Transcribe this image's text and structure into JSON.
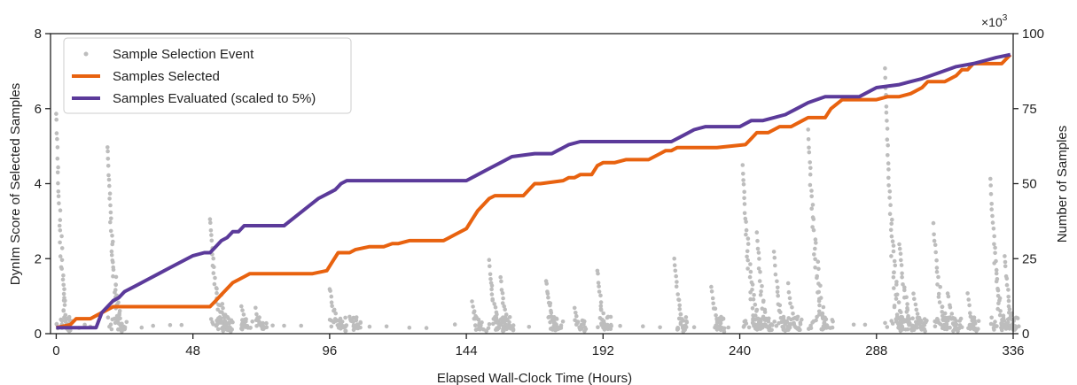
{
  "chart_data": {
    "type": "line",
    "xlabel": "Elapsed Wall-Clock Time (Hours)",
    "ylabel_left": "DynIm Score of Selected Samples",
    "ylabel_right": "Number of Samples",
    "right_multiplier_base": "×10",
    "right_multiplier_exp": "3",
    "xlim": [
      -2,
      336
    ],
    "ylim_left": [
      0,
      8
    ],
    "ylim_right": [
      0,
      100
    ],
    "x_ticks": [
      0,
      48,
      96,
      144,
      192,
      240,
      288,
      336
    ],
    "y_left_ticks": [
      0,
      2,
      4,
      6,
      8
    ],
    "y_right_ticks": [
      0,
      25,
      50,
      75,
      100
    ],
    "legend_position": "top-left",
    "colors": {
      "events": "#bdbdbd",
      "selected": "#e8620f",
      "evaluated": "#5b3a9a"
    },
    "legend": [
      {
        "label": "Sample Selection Event",
        "kind": "marker"
      },
      {
        "label": "Samples Selected",
        "kind": "line"
      },
      {
        "label": "Samples Evaluated (scaled to 5%)",
        "kind": "line"
      }
    ],
    "series": [
      {
        "name": "Samples Selected",
        "axis": "right",
        "x": [
          0,
          5,
          7,
          10,
          12,
          14,
          16,
          18,
          20,
          22,
          26,
          40,
          54,
          56,
          58,
          60,
          62,
          64,
          66,
          68,
          70,
          80,
          90,
          95,
          97,
          99,
          101,
          103,
          105,
          110,
          115,
          118,
          120,
          124,
          126,
          136,
          140,
          144,
          146,
          148,
          150,
          152,
          154,
          156,
          158,
          164,
          166,
          168,
          170,
          178,
          180,
          182,
          184,
          188,
          190,
          192,
          196,
          200,
          208,
          212,
          214,
          216,
          218,
          220,
          224,
          228,
          232,
          242,
          244,
          246,
          250,
          252,
          254,
          258,
          262,
          264,
          266,
          270,
          272,
          276,
          278,
          280,
          286,
          288,
          292,
          296,
          300,
          304,
          306,
          312,
          316,
          318,
          320,
          322,
          326,
          332,
          335
        ],
        "values": [
          2,
          3,
          5,
          5,
          5,
          6,
          7,
          8,
          9,
          9,
          9,
          9,
          9,
          11,
          13,
          15,
          17,
          18,
          19,
          20,
          20,
          20,
          20,
          21,
          24,
          27,
          27,
          27,
          28,
          29,
          29,
          30,
          30,
          31,
          31,
          31,
          33,
          35,
          38,
          41,
          43,
          45,
          46,
          46,
          46,
          46,
          48,
          50,
          50,
          51,
          52,
          52,
          53,
          53,
          56,
          57,
          57,
          58,
          58,
          60,
          61,
          61,
          62,
          62,
          62,
          62,
          62,
          63,
          65,
          67,
          67,
          68,
          69,
          69,
          71,
          72,
          72,
          72,
          75,
          78,
          78,
          78,
          78,
          78,
          79,
          79,
          80,
          82,
          84,
          84,
          86,
          88,
          88,
          90,
          90,
          90,
          93
        ]
      },
      {
        "name": "Samples Evaluated (scaled to 5%)",
        "axis": "right",
        "x": [
          0,
          2,
          14,
          16,
          18,
          20,
          22,
          24,
          28,
          32,
          36,
          40,
          44,
          48,
          52,
          54,
          56,
          58,
          60,
          62,
          64,
          66,
          70,
          80,
          84,
          88,
          92,
          96,
          98,
          100,
          102,
          110,
          124,
          140,
          144,
          148,
          152,
          156,
          160,
          168,
          170,
          174,
          176,
          180,
          184,
          188,
          210,
          216,
          220,
          224,
          228,
          234,
          240,
          242,
          244,
          248,
          252,
          256,
          260,
          264,
          270,
          274,
          278,
          282,
          288,
          296,
          300,
          304,
          310,
          316,
          322,
          326,
          330,
          335
        ],
        "values": [
          2,
          2,
          2,
          7,
          9,
          11,
          12,
          14,
          16,
          18,
          20,
          22,
          24,
          26,
          27,
          27,
          29,
          31,
          32,
          34,
          34,
          36,
          36,
          36,
          39,
          42,
          45,
          47,
          48,
          50,
          51,
          51,
          51,
          51,
          51,
          53,
          55,
          57,
          59,
          60,
          60,
          60,
          61,
          63,
          64,
          64,
          64,
          64,
          66,
          68,
          69,
          69,
          69,
          70,
          71,
          71,
          72,
          73,
          75,
          77,
          79,
          79,
          79,
          79,
          82,
          83,
          84,
          85,
          87,
          89,
          90,
          91,
          92,
          93
        ]
      }
    ],
    "events": [
      {
        "x": 0,
        "max": 5.8,
        "width": 6,
        "n": 50
      },
      {
        "x": 18,
        "max": 4.9,
        "width": 7,
        "n": 55
      },
      {
        "x": 54,
        "max": 3.0,
        "width": 7,
        "n": 38
      },
      {
        "x": 58,
        "max": 0.9,
        "width": 4,
        "n": 12
      },
      {
        "x": 65,
        "max": 0.6,
        "width": 4,
        "n": 10
      },
      {
        "x": 70,
        "max": 0.6,
        "width": 4,
        "n": 10
      },
      {
        "x": 96,
        "max": 1.1,
        "width": 6,
        "n": 20
      },
      {
        "x": 103,
        "max": 0.3,
        "width": 4,
        "n": 6
      },
      {
        "x": 146,
        "max": 0.7,
        "width": 6,
        "n": 16
      },
      {
        "x": 152,
        "max": 1.8,
        "width": 6,
        "n": 28
      },
      {
        "x": 156,
        "max": 1.4,
        "width": 5,
        "n": 20
      },
      {
        "x": 172,
        "max": 1.3,
        "width": 6,
        "n": 24
      },
      {
        "x": 182,
        "max": 0.6,
        "width": 4,
        "n": 10
      },
      {
        "x": 190,
        "max": 1.6,
        "width": 5,
        "n": 22
      },
      {
        "x": 217,
        "max": 1.9,
        "width": 5,
        "n": 24
      },
      {
        "x": 230,
        "max": 1.1,
        "width": 5,
        "n": 18
      },
      {
        "x": 241,
        "max": 4.4,
        "width": 8,
        "n": 50
      },
      {
        "x": 246,
        "max": 2.6,
        "width": 6,
        "n": 28
      },
      {
        "x": 252,
        "max": 2.1,
        "width": 6,
        "n": 22
      },
      {
        "x": 257,
        "max": 1.2,
        "width": 5,
        "n": 14
      },
      {
        "x": 264,
        "max": 5.3,
        "width": 9,
        "n": 55
      },
      {
        "x": 291,
        "max": 7.0,
        "width": 8,
        "n": 60
      },
      {
        "x": 296,
        "max": 2.3,
        "width": 7,
        "n": 30
      },
      {
        "x": 301,
        "max": 1.0,
        "width": 5,
        "n": 14
      },
      {
        "x": 308,
        "max": 2.8,
        "width": 7,
        "n": 30
      },
      {
        "x": 313,
        "max": 1.0,
        "width": 5,
        "n": 14
      },
      {
        "x": 320,
        "max": 1.0,
        "width": 4,
        "n": 12
      },
      {
        "x": 328,
        "max": 4.0,
        "width": 7,
        "n": 42
      },
      {
        "x": 333,
        "max": 2.0,
        "width": 5,
        "n": 24
      }
    ],
    "baseline_events": [
      8,
      10,
      12,
      30,
      34,
      40,
      44,
      76,
      80,
      86,
      110,
      116,
      124,
      130,
      140,
      166,
      198,
      206,
      212,
      224,
      236,
      280,
      284,
      318
    ]
  }
}
